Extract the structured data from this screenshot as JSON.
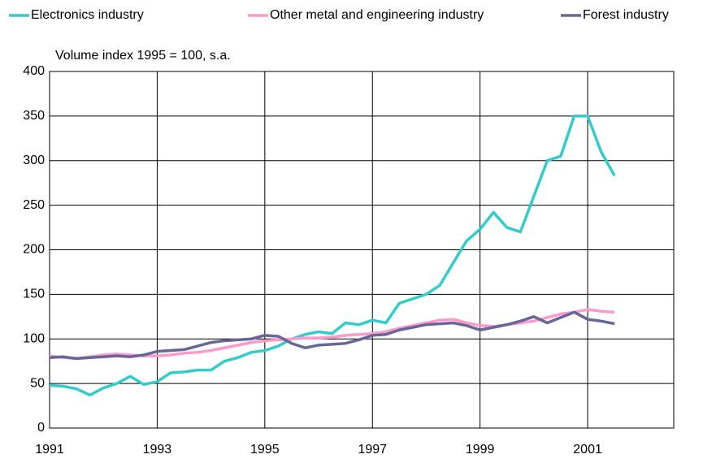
{
  "chart_data": {
    "type": "line",
    "y_label": "Volume index 1995 = 100, s.a.",
    "x": [
      1991,
      1991.25,
      1991.5,
      1991.75,
      1992,
      1992.25,
      1992.5,
      1992.75,
      1993,
      1993.25,
      1993.5,
      1993.75,
      1994,
      1994.25,
      1994.5,
      1994.75,
      1995,
      1995.25,
      1995.5,
      1995.75,
      1996,
      1996.25,
      1996.5,
      1996.75,
      1997,
      1997.25,
      1997.5,
      1997.75,
      1998,
      1998.25,
      1998.5,
      1998.75,
      1999,
      1999.25,
      1999.5,
      1999.75,
      2000,
      2000.25,
      2000.5,
      2000.75,
      2001,
      2001.25,
      2001.5
    ],
    "series": [
      {
        "name": "Electronics industry",
        "color": "#33cccc",
        "values": [
          48,
          47,
          44,
          37,
          45,
          50,
          58,
          49,
          52,
          62,
          63,
          65,
          65,
          75,
          79,
          85,
          87,
          92,
          100,
          105,
          108,
          106,
          118,
          116,
          121,
          118,
          140,
          145,
          150,
          160,
          185,
          210,
          223,
          242,
          225,
          220,
          260,
          300,
          305,
          350,
          350,
          310,
          283
        ]
      },
      {
        "name": "Other metal and engineering industry",
        "color": "#ff99cc",
        "values": [
          81,
          79,
          78,
          80,
          82,
          83,
          82,
          81,
          81,
          82,
          84,
          85,
          87,
          90,
          93,
          96,
          98,
          99,
          100,
          101,
          101,
          102,
          104,
          105,
          106,
          108,
          112,
          115,
          118,
          121,
          122,
          118,
          115,
          114,
          116,
          118,
          120,
          124,
          128,
          130,
          133,
          131,
          130
        ]
      },
      {
        "name": "Forest industry",
        "color": "#666699",
        "values": [
          79,
          80,
          78,
          79,
          80,
          81,
          80,
          82,
          86,
          87,
          88,
          92,
          96,
          98,
          99,
          100,
          104,
          103,
          95,
          90,
          93,
          94,
          95,
          99,
          104,
          105,
          110,
          113,
          116,
          117,
          118,
          115,
          110,
          113,
          116,
          120,
          125,
          118,
          124,
          130,
          122,
          120,
          117
        ]
      }
    ],
    "xlim": [
      1991,
      2002.6
    ],
    "xticks": [
      1991,
      1993,
      1995,
      1997,
      1999,
      2001
    ],
    "ylim": [
      0,
      400
    ],
    "yticks": [
      0,
      50,
      100,
      150,
      200,
      250,
      300,
      350,
      400
    ],
    "grid": true,
    "legend": "top"
  }
}
